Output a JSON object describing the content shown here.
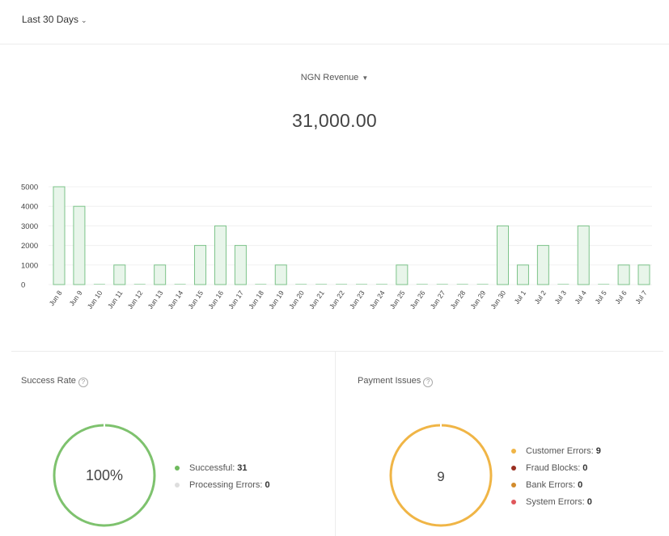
{
  "header": {
    "period_label": "Last 30 Days"
  },
  "metric": {
    "selector_label": "NGN Revenue",
    "total": "31,000.00"
  },
  "chart_data": {
    "type": "bar",
    "categories": [
      "Jun 8",
      "Jun 9",
      "Jun 10",
      "Jun 11",
      "Jun 12",
      "Jun 13",
      "Jun 14",
      "Jun 15",
      "Jun 16",
      "Jun 17",
      "Jun 18",
      "Jun 19",
      "Jun 20",
      "Jun 21",
      "Jun 22",
      "Jun 23",
      "Jun 24",
      "Jun 25",
      "Jun 26",
      "Jun 27",
      "Jun 28",
      "Jun 29",
      "Jun 30",
      "Jul 1",
      "Jul 2",
      "Jul 3",
      "Jul 4",
      "Jul 5",
      "Jul 6",
      "Jul 7"
    ],
    "values": [
      5000,
      4000,
      0,
      1000,
      0,
      1000,
      0,
      2000,
      3000,
      2000,
      0,
      1000,
      0,
      0,
      0,
      0,
      0,
      1000,
      0,
      0,
      0,
      0,
      3000,
      1000,
      2000,
      0,
      3000,
      0,
      1000,
      1000
    ],
    "yticks": [
      0,
      1000,
      2000,
      3000,
      4000,
      5000
    ],
    "ylim": [
      0,
      5000
    ],
    "grid": true,
    "colors": {
      "bar_fill": "#e8f5ea",
      "bar_stroke": "#7cc389",
      "zero_bar": "#a9d9b2",
      "grid": "#f0f0f0"
    }
  },
  "success_rate": {
    "title": "Success Rate",
    "value": "100%",
    "ring_color": "#7ec26e",
    "legend": [
      {
        "label": "Successful:",
        "value": "31",
        "color": "#6fba5e"
      },
      {
        "label": "Processing Errors:",
        "value": "0",
        "color": "#dedede"
      }
    ]
  },
  "payment_issues": {
    "title": "Payment Issues",
    "value": "9",
    "ring_color": "#f0b546",
    "legend": [
      {
        "label": "Customer Errors:",
        "value": "9",
        "color": "#f0b546"
      },
      {
        "label": "Fraud Blocks:",
        "value": "0",
        "color": "#9a2f21"
      },
      {
        "label": "Bank Errors:",
        "value": "0",
        "color": "#d28b2c"
      },
      {
        "label": "System Errors:",
        "value": "0",
        "color": "#e0575b"
      }
    ]
  }
}
